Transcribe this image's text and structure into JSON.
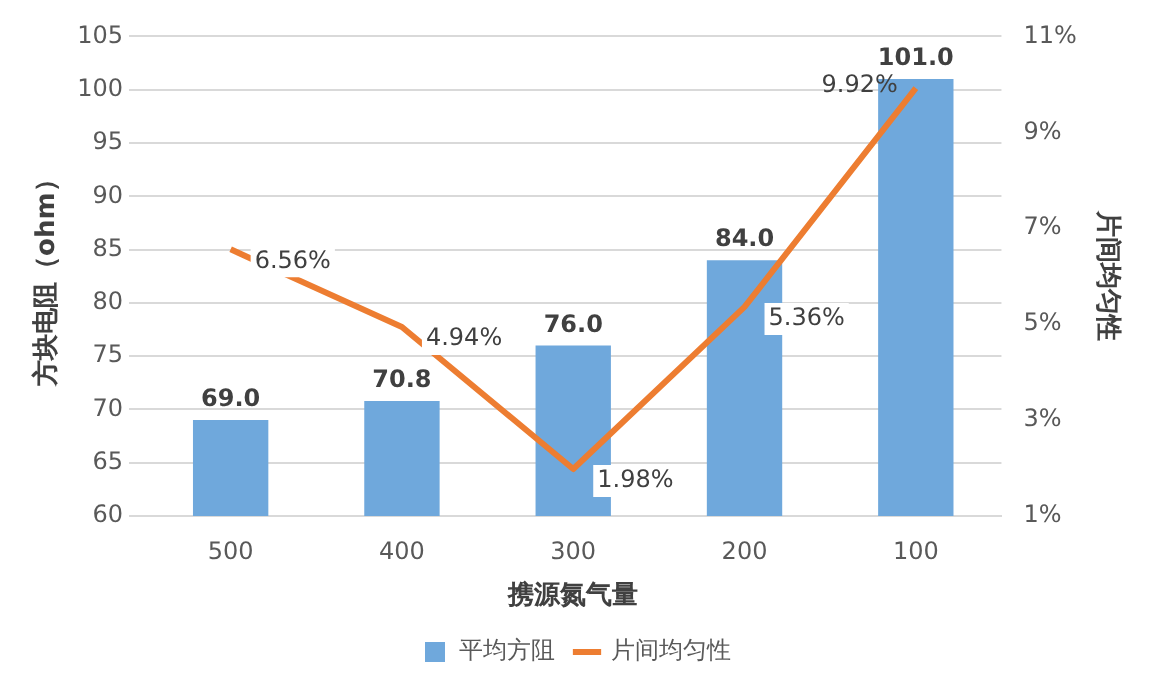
{
  "chart_data": {
    "type": "bar",
    "categories": [
      "500",
      "400",
      "300",
      "200",
      "100"
    ],
    "xlabel": "携源氮气量",
    "ylabel": "方块电阻（ohm）",
    "y2label": "片间均匀性",
    "series": [
      {
        "name": "平均方阻",
        "color": "#6fa8dc",
        "values": [
          69.0,
          70.8,
          76.0,
          84.0,
          101.0
        ],
        "value_labels": [
          "69.0",
          "70.8",
          "76.0",
          "84.0",
          "101.0"
        ]
      },
      {
        "name": "片间均匀性",
        "type": "line",
        "axis": "y2",
        "color": "#ed7d31",
        "values": [
          6.56,
          4.94,
          1.98,
          5.36,
          9.92
        ],
        "value_labels": [
          "6.56%",
          "4.94%",
          "1.98%",
          "5.36%",
          "9.92%"
        ]
      }
    ],
    "ylim": [
      60,
      105
    ],
    "yticks": [
      60,
      65,
      70,
      75,
      80,
      85,
      90,
      95,
      100,
      105
    ],
    "y2lim": [
      1,
      11
    ],
    "y2ticks": [
      {
        "value": 1,
        "label": "1%"
      },
      {
        "value": 3,
        "label": "3%"
      },
      {
        "value": 5,
        "label": "5%"
      },
      {
        "value": 7,
        "label": "7%"
      },
      {
        "value": 9,
        "label": "9%"
      },
      {
        "value": 11,
        "label": "11%"
      }
    ],
    "grid": "y",
    "legend": "bottom",
    "marker": "none",
    "line_style": "solid"
  }
}
